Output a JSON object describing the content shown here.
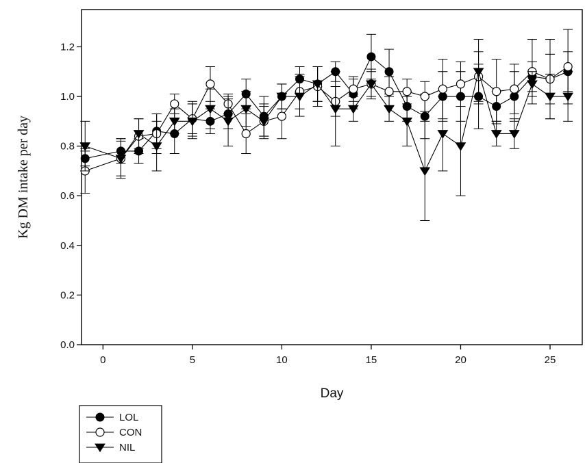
{
  "chart_data": {
    "type": "line",
    "xlabel": "Day",
    "ylabel": "Kg DM intake per day",
    "xlim": [
      -1.2,
      26.8
    ],
    "ylim": [
      0,
      1.35
    ],
    "xticks": [
      0,
      5,
      10,
      15,
      20,
      25
    ],
    "yticks": [
      0.0,
      0.2,
      0.4,
      0.6,
      0.8,
      1.0,
      1.2
    ],
    "grid": false,
    "legend_position": "bottom-left",
    "x": [
      -1,
      1,
      2,
      3,
      4,
      5,
      6,
      7,
      8,
      9,
      10,
      11,
      12,
      13,
      14,
      15,
      16,
      17,
      18,
      19,
      20,
      21,
      22,
      23,
      24,
      25,
      26
    ],
    "series": [
      {
        "name": "LOL",
        "marker": "filled-circle",
        "values": [
          0.75,
          0.78,
          0.78,
          0.86,
          0.85,
          0.91,
          0.9,
          0.93,
          1.01,
          0.92,
          1.0,
          1.07,
          1.05,
          1.1,
          1.01,
          1.16,
          1.1,
          0.96,
          0.92,
          1.0,
          1.0,
          1.0,
          0.96,
          1.0,
          1.08,
          1.07,
          1.1
        ],
        "errors": [
          0.03,
          0.05,
          0.05,
          0.07,
          0.08,
          0.06,
          0.05,
          0.06,
          0.06,
          0.08,
          0.05,
          0.05,
          0.07,
          0.04,
          0.06,
          0.09,
          0.09,
          0.06,
          0.09,
          0.1,
          0.1,
          0.13,
          0.06,
          0.1,
          0.06,
          0.1,
          0.08
        ]
      },
      {
        "name": "CON",
        "marker": "open-circle",
        "values": [
          0.7,
          0.75,
          0.84,
          0.85,
          0.97,
          0.91,
          1.05,
          0.97,
          0.85,
          0.9,
          0.92,
          1.02,
          1.04,
          0.98,
          1.03,
          1.05,
          1.02,
          1.02,
          1.0,
          1.03,
          1.05,
          1.08,
          1.02,
          1.03,
          1.1,
          1.07,
          1.12
        ],
        "errors": [
          0.09,
          0.07,
          0.07,
          0.08,
          0.04,
          0.07,
          0.07,
          0.04,
          0.08,
          0.07,
          0.09,
          0.07,
          0.08,
          0.06,
          0.05,
          0.06,
          0.06,
          0.05,
          0.06,
          0.12,
          0.09,
          0.1,
          0.13,
          0.1,
          0.13,
          0.16,
          0.15
        ]
      },
      {
        "name": "NIL",
        "marker": "filled-triangle-down",
        "values": [
          0.8,
          0.75,
          0.85,
          0.8,
          0.9,
          0.9,
          0.95,
          0.9,
          0.95,
          0.9,
          1.0,
          1.0,
          1.05,
          0.95,
          0.95,
          1.05,
          0.95,
          0.9,
          0.7,
          0.85,
          0.8,
          1.1,
          0.85,
          0.85,
          1.05,
          1.0,
          1.0
        ],
        "errors": [
          0.1,
          0.08,
          0.06,
          0.1,
          0.05,
          0.07,
          0.08,
          0.1,
          0.07,
          0.06,
          0.05,
          0.08,
          0.07,
          0.15,
          0.05,
          0.05,
          0.05,
          0.1,
          0.2,
          0.15,
          0.2,
          0.13,
          0.05,
          0.06,
          0.05,
          0.09,
          0.1
        ]
      }
    ]
  }
}
